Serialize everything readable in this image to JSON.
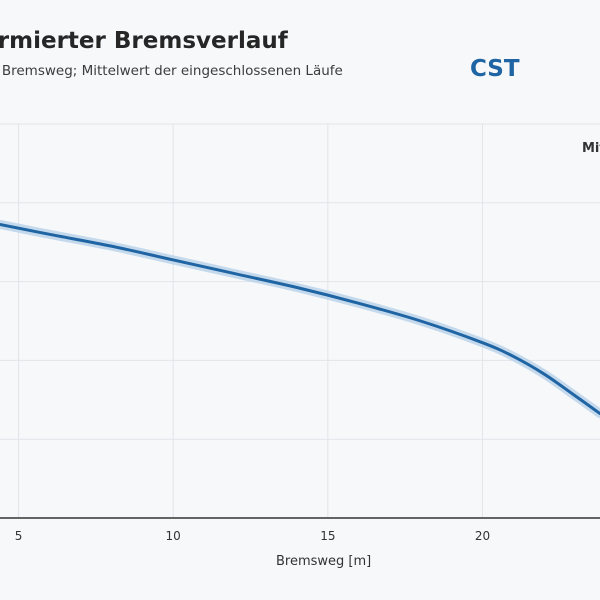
{
  "chart_data": {
    "type": "line",
    "title": "ormierter Bremsverlauf",
    "subtitle": "r Bremsweg; Mittelwert der eingeschlossenen Läufe",
    "brand": "CST",
    "legend_partial": "Mit",
    "xlabel": "Bremsweg [m]",
    "xlim": [
      4.4,
      23.8
    ],
    "x_ticks": [
      5,
      10,
      15,
      20
    ],
    "ylim": [
      0,
      1
    ],
    "grid": true,
    "series": [
      {
        "x": [
          4.4,
          6,
          8,
          10,
          12,
          14,
          16,
          18,
          20,
          21,
          22,
          23,
          23.8
        ],
        "y": [
          0.745,
          0.72,
          0.69,
          0.655,
          0.62,
          0.585,
          0.545,
          0.5,
          0.445,
          0.41,
          0.365,
          0.31,
          0.265
        ],
        "color": "#1f64a3",
        "band_color": "#bcd3ea"
      }
    ]
  }
}
